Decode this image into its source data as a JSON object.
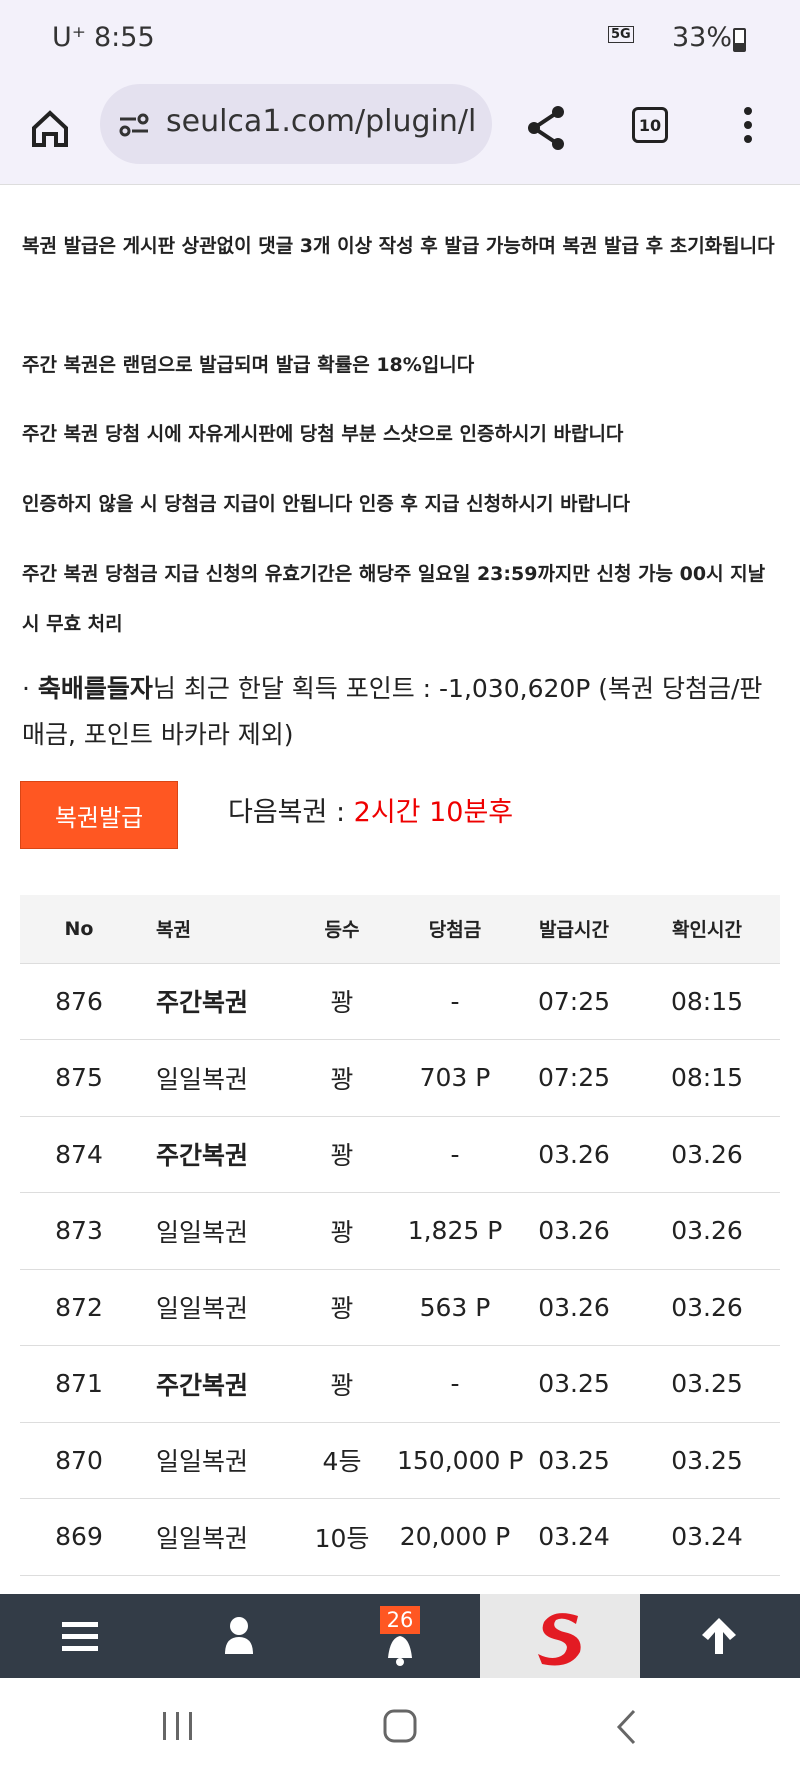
{
  "status_bar": {
    "carrier": "U⁺",
    "time": "8:55",
    "network": "5G",
    "battery": "33%"
  },
  "browser": {
    "url": "seulca1.com/plugin/l",
    "tabs": "10"
  },
  "notices": [
    "복권 발급은 게시판 상관없이 댓글 3개 이상 작성 후 발급 가능하며 복권 발급 후 초기화됩니다",
    "주간 복권은 랜덤으로 발급되며 발급 확률은 18%입니다",
    "주간 복권 당첨 시에 자유게시판에 당첨 부분 스샷으로 인증하시기 바랍니다",
    "인증하지 않을 시 당첨금 지급이 안됩니다 인증 후 지급 신청하시기 바랍니다",
    "주간 복권 당첨금 지급 신청의 유효기간은 해당주 일요일 23:59까지만 신청 가능 00시 지날 시 무효 처리"
  ],
  "points": {
    "bullet": "·",
    "user": "축배를들자",
    "text": "님 최근 한달 획득 포인트 : -1,030,620P (복권 당첨금/판매금, 포인트 바카라 제외)"
  },
  "issue_button": "복권발급",
  "next": {
    "label": "다음복권 :",
    "value": "2시간 10분후"
  },
  "table": {
    "headers": [
      "No",
      "복권",
      "등수",
      "당첨금",
      "발급시간",
      "확인시간"
    ],
    "rows": [
      {
        "cells": [
          "876",
          "주간복권",
          "꽝",
          "-",
          "07:25",
          "08:15"
        ],
        "bold": true
      },
      {
        "cells": [
          "875",
          "일일복권",
          "꽝",
          "703 P",
          "07:25",
          "08:15"
        ],
        "bold": false
      },
      {
        "cells": [
          "874",
          "주간복권",
          "꽝",
          "-",
          "03.26",
          "03.26"
        ],
        "bold": true
      },
      {
        "cells": [
          "873",
          "일일복권",
          "꽝",
          "1,825 P",
          "03.26",
          "03.26"
        ],
        "bold": false
      },
      {
        "cells": [
          "872",
          "일일복권",
          "꽝",
          "563 P",
          "03.26",
          "03.26"
        ],
        "bold": false
      },
      {
        "cells": [
          "871",
          "주간복권",
          "꽝",
          "-",
          "03.25",
          "03.25"
        ],
        "bold": true
      },
      {
        "cells": [
          "870",
          "일일복권",
          "4등",
          "150,000 P",
          "03.25",
          "03.25"
        ],
        "bold": false
      },
      {
        "cells": [
          "869",
          "일일복권",
          "10등",
          "20,000 P",
          "03.24",
          "03.24"
        ],
        "bold": false
      }
    ]
  },
  "bottom_nav": {
    "badge": "26"
  }
}
